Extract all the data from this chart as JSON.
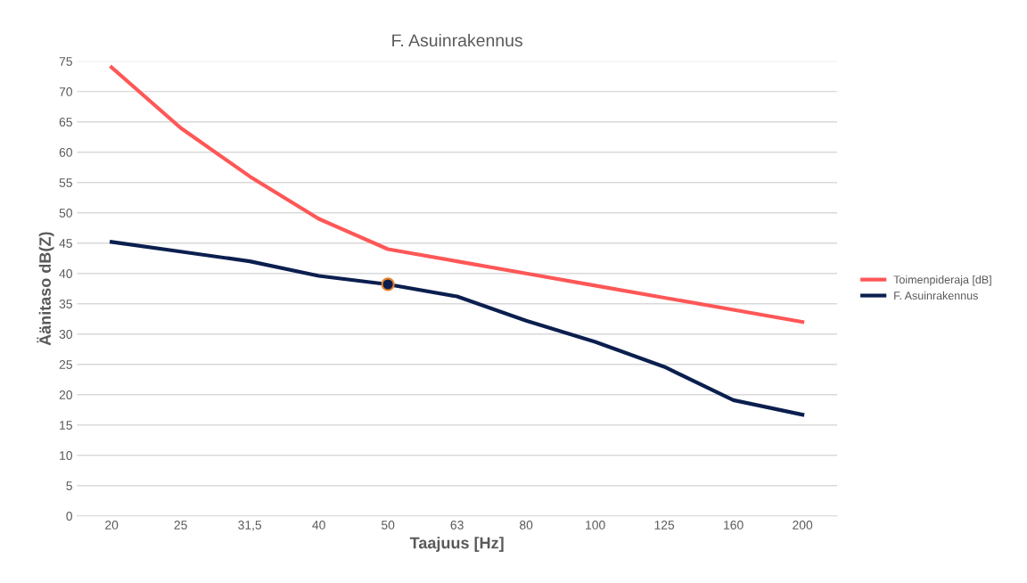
{
  "chart_data": {
    "type": "line",
    "title": "F. Asuinrakennus",
    "xlabel": "Taajuus [Hz]",
    "ylabel": "Äänitaso dB(Z)",
    "categories": [
      "20",
      "25",
      "31,5",
      "40",
      "50",
      "63",
      "80",
      "100",
      "125",
      "160",
      "200"
    ],
    "series": [
      {
        "name": "Toimenpideraja [dB]",
        "color": "#ff5757",
        "values": [
          74,
          64,
          56,
          49,
          44,
          42,
          40,
          38,
          36,
          34,
          32
        ]
      },
      {
        "name": "F. Asuinrakennus",
        "color": "#0b1f4f",
        "values": [
          45.2,
          43.6,
          42,
          39.6,
          38.2,
          36.2,
          32.2,
          28.7,
          24.6,
          19.1,
          16.7
        ]
      },
      {
        "type": "scatter",
        "x": [
          "50"
        ],
        "color": "#0b1f4f",
        "values": [
          38.2
        ],
        "marker": "circle"
      }
    ],
    "ylim": [
      0,
      75
    ],
    "yticks": [
      0,
      5,
      10,
      15,
      20,
      25,
      30,
      35,
      40,
      45,
      50,
      55,
      60,
      65,
      70,
      75
    ],
    "grid": "y",
    "legend": "right",
    "marker": "none",
    "line_style": "solid"
  }
}
